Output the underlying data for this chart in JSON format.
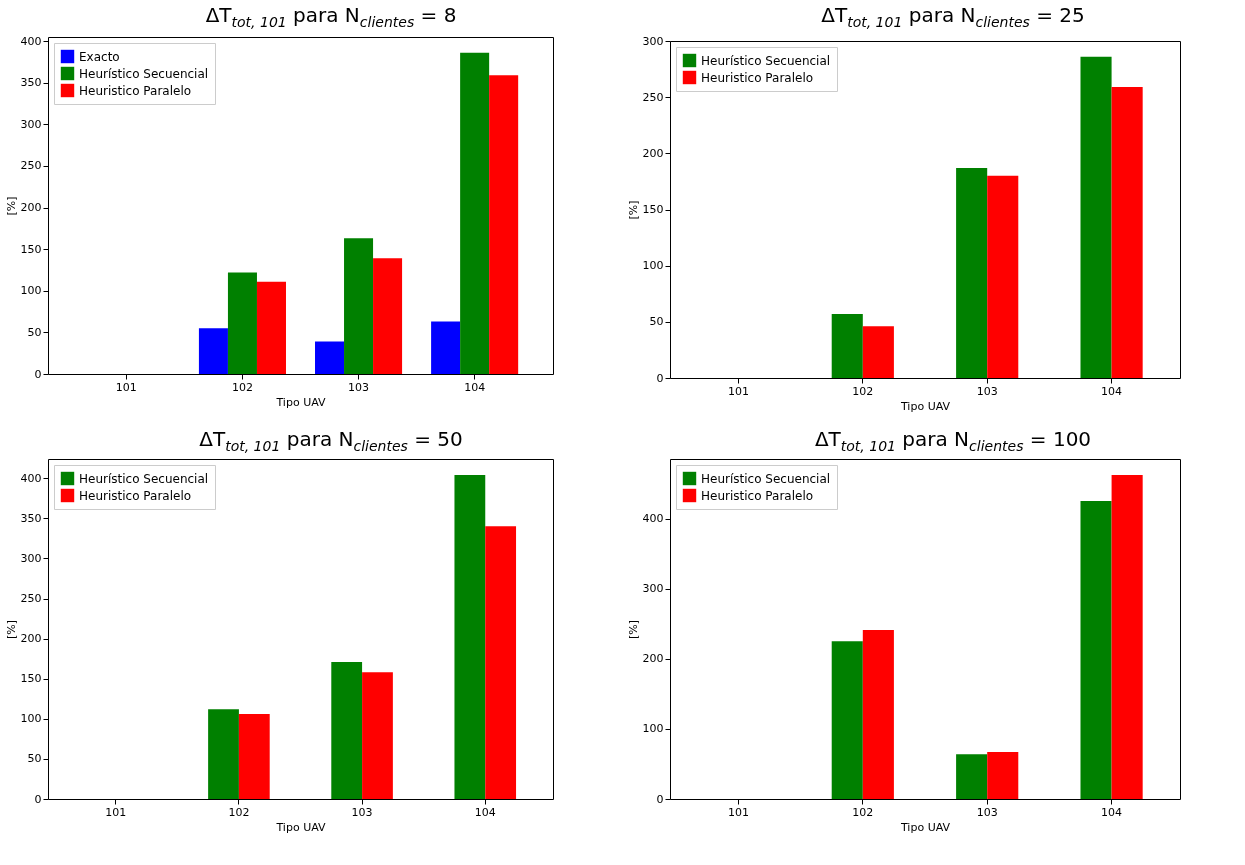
{
  "chart_data": [
    {
      "type": "bar",
      "title": "ΔT$_{tot, 101}$ para N$_{clientes}$ = 8",
      "xlabel": "Tipo UAV",
      "ylabel": "[%]",
      "categories": [
        "101",
        "102",
        "103",
        "104"
      ],
      "series": [
        {
          "name": "Exacto",
          "color": "#0000ff",
          "values": [
            0,
            55,
            39,
            63
          ]
        },
        {
          "name": "Heurístico Secuencial",
          "color": "#008000",
          "values": [
            0,
            122,
            163,
            386
          ]
        },
        {
          "name": "Heuristico Paralelo",
          "color": "#ff0000",
          "values": [
            0,
            111,
            139,
            359
          ]
        }
      ],
      "ylim": [
        0,
        405
      ],
      "yticks": [
        0,
        50,
        100,
        150,
        200,
        250,
        300,
        350,
        400
      ],
      "legend": "top left"
    },
    {
      "type": "bar",
      "title": "ΔT$_{tot, 101}$ para N$_{clientes}$ = 25",
      "xlabel": "Tipo UAV",
      "ylabel": "[%]",
      "categories": [
        "101",
        "102",
        "103",
        "104"
      ],
      "series": [
        {
          "name": "Heurístico Secuencial",
          "color": "#008000",
          "values": [
            0,
            57,
            187,
            286
          ]
        },
        {
          "name": "Heuristico Paralelo",
          "color": "#ff0000",
          "values": [
            0,
            46,
            180,
            259
          ]
        }
      ],
      "ylim": [
        0,
        300
      ],
      "yticks": [
        0,
        50,
        100,
        150,
        200,
        250,
        300
      ],
      "legend": "top left"
    },
    {
      "type": "bar",
      "title": "ΔT$_{tot, 101}$ para N$_{clientes}$ = 50",
      "xlabel": "Tipo UAV",
      "ylabel": "[%]",
      "categories": [
        "101",
        "102",
        "103",
        "104"
      ],
      "series": [
        {
          "name": "Heurístico Secuencial",
          "color": "#008000",
          "values": [
            0,
            112,
            171,
            404
          ]
        },
        {
          "name": "Heuristico Paralelo",
          "color": "#ff0000",
          "values": [
            0,
            106,
            158,
            340
          ]
        }
      ],
      "ylim": [
        0,
        424
      ],
      "yticks": [
        0,
        50,
        100,
        150,
        200,
        250,
        300,
        350,
        400
      ],
      "legend": "top left"
    },
    {
      "type": "bar",
      "title": "ΔT$_{tot, 101}$ para N$_{clientes}$ = 100",
      "xlabel": "Tipo UAV",
      "ylabel": "[%]",
      "categories": [
        "101",
        "102",
        "103",
        "104"
      ],
      "series": [
        {
          "name": "Heurístico Secuencial",
          "color": "#008000",
          "values": [
            0,
            225,
            64,
            425
          ]
        },
        {
          "name": "Heuristico Paralelo",
          "color": "#ff0000",
          "values": [
            0,
            241,
            67,
            462
          ]
        }
      ],
      "ylim": [
        0,
        485
      ],
      "yticks": [
        0,
        100,
        200,
        300,
        400
      ],
      "legend": "top left"
    }
  ]
}
